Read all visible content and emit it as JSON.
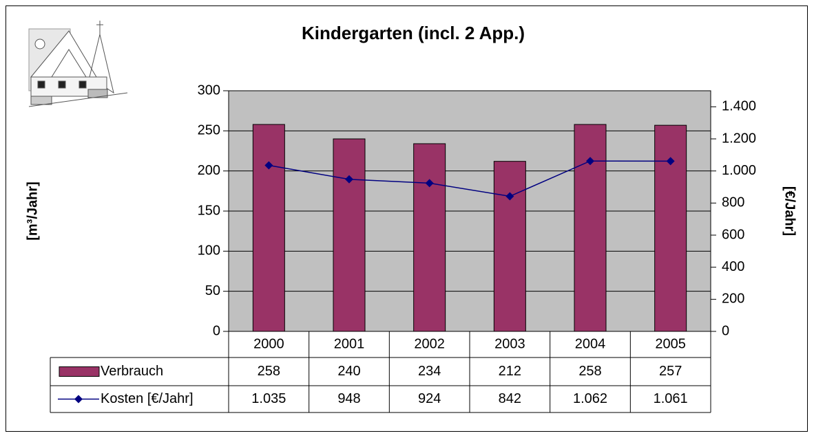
{
  "chart_data": {
    "type": "bar",
    "title": "Kindergarten (incl. 2 App.)",
    "y_label": "[m³/Jahr]",
    "y2_label": "[€/Jahr]",
    "categories": [
      "2000",
      "2001",
      "2002",
      "2003",
      "2004",
      "2005"
    ],
    "series": [
      {
        "name": "Verbrauch",
        "type": "bar",
        "color": "#993366",
        "values": [
          258,
          240,
          234,
          212,
          258,
          257
        ]
      },
      {
        "name": "Kosten [€/Jahr]",
        "type": "line",
        "axis": "y2",
        "color": "#000080",
        "values": [
          1035,
          948,
          924,
          842,
          1062,
          1061
        ],
        "value_labels": [
          "1.035",
          "948",
          "924",
          "842",
          "1.062",
          "1.061"
        ]
      }
    ],
    "ylim": [
      0,
      300
    ],
    "yticks": [
      0,
      50,
      100,
      150,
      200,
      250,
      300
    ],
    "y2lim": [
      0,
      1500
    ],
    "y2ticks": [
      0,
      200,
      400,
      600,
      800,
      {
        "value": 1000,
        "label": "1.000"
      },
      {
        "value": 1200,
        "label": "1.200"
      },
      {
        "value": 1400,
        "label": "1.400"
      }
    ],
    "grid": true,
    "plot_background": "#c0c0c0",
    "data_table": true
  }
}
